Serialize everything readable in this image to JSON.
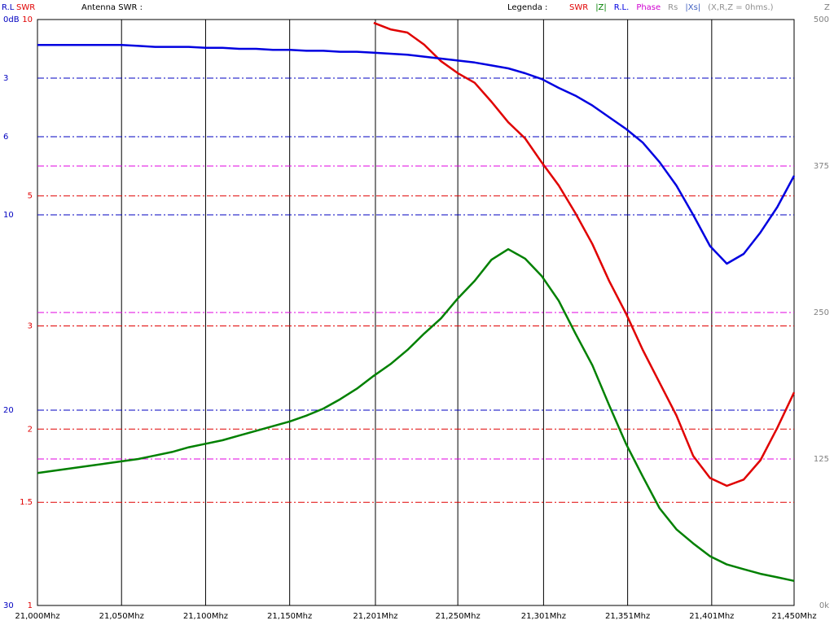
{
  "chart_data": {
    "type": "line",
    "title": "Antenna SWR :",
    "legend_title": "Legenda :",
    "legend_extra": [
      {
        "name": "Phase",
        "color": "#d000d0"
      },
      {
        "name": "Rs",
        "color": "#909090"
      },
      {
        "name": "|Xs|",
        "color": "#4060c0"
      }
    ],
    "note": "(X,R,Z = 0hms.)",
    "ylabel": "SWR",
    "y3label": "R.L",
    "y2label": "Z",
    "yscale": "log",
    "ylim": [
      1,
      10
    ],
    "yticks": [
      1,
      1.5,
      2,
      3,
      5,
      10
    ],
    "ycolor": "#e00000",
    "ygrid_color": "#e00000",
    "y2lim": [
      0,
      500
    ],
    "y2ticks": [
      {
        "value": 0,
        "label": "0k"
      },
      125,
      250,
      375,
      500
    ],
    "y2color": "#808080",
    "y2grid_color": "#e000e0",
    "y3lim": [
      30,
      0
    ],
    "y3ticks": [
      {
        "value": 0,
        "label": "0dB"
      },
      3,
      6,
      10,
      20,
      30
    ],
    "y3color": "#0000c0",
    "y3grid_color": "#0000c0",
    "xlim": [
      21000,
      21450
    ],
    "xticks": [
      {
        "value": 21000,
        "label": "21,000Mhz"
      },
      {
        "value": 21050,
        "label": "21,050Mhz"
      },
      {
        "value": 21100,
        "label": "21,100Mhz"
      },
      {
        "value": 21150,
        "label": "21,150Mhz"
      },
      {
        "value": 21201,
        "label": "21,201Mhz"
      },
      {
        "value": 21250,
        "label": "21,250Mhz"
      },
      {
        "value": 21301,
        "label": "21,301Mhz"
      },
      {
        "value": 21351,
        "label": "21,351Mhz"
      },
      {
        "value": 21401,
        "label": "21,401Mhz"
      },
      {
        "value": 21450,
        "label": "21,450Mhz"
      }
    ],
    "grid": true,
    "x": [
      21000,
      21010,
      21020,
      21030,
      21040,
      21050,
      21060,
      21070,
      21080,
      21090,
      21100,
      21110,
      21120,
      21130,
      21140,
      21150,
      21160,
      21170,
      21180,
      21190,
      21200,
      21210,
      21220,
      21230,
      21240,
      21250,
      21260,
      21270,
      21280,
      21290,
      21300,
      21310,
      21320,
      21330,
      21340,
      21350,
      21360,
      21370,
      21380,
      21390,
      21400,
      21410,
      21420,
      21430,
      21440,
      21450
    ],
    "series": [
      {
        "name": "SWR",
        "color": "#e00000",
        "axis": "y",
        "values": [
          null,
          null,
          null,
          null,
          null,
          null,
          null,
          null,
          null,
          null,
          null,
          null,
          null,
          null,
          null,
          null,
          null,
          null,
          null,
          null,
          9.87,
          9.62,
          9.5,
          9.06,
          8.49,
          8.1,
          7.8,
          7.24,
          6.68,
          6.27,
          5.7,
          5.21,
          4.67,
          4.14,
          3.58,
          3.15,
          2.73,
          2.4,
          2.11,
          1.8,
          1.65,
          1.6,
          1.64,
          1.77,
          2.01,
          2.31
        ]
      },
      {
        "name": "|Z|",
        "color": "#008000",
        "axis": "y2",
        "values": [
          113,
          115,
          117,
          119,
          121,
          123,
          125,
          128,
          131,
          135,
          138,
          141,
          145,
          149,
          153,
          157,
          162,
          168,
          176,
          185,
          196,
          206,
          218,
          232,
          245,
          262,
          277,
          295,
          304,
          296,
          281,
          260,
          232,
          205,
          171,
          138,
          110,
          83,
          65,
          53,
          42,
          35,
          31,
          27,
          24,
          21
        ]
      },
      {
        "name": "R.L.",
        "color": "#0000e0",
        "axis": "y3",
        "values": [
          1.3,
          1.3,
          1.3,
          1.3,
          1.3,
          1.3,
          1.35,
          1.4,
          1.4,
          1.4,
          1.45,
          1.45,
          1.5,
          1.5,
          1.55,
          1.55,
          1.6,
          1.6,
          1.65,
          1.65,
          1.7,
          1.75,
          1.8,
          1.9,
          2.0,
          2.1,
          2.2,
          2.35,
          2.5,
          2.75,
          3.05,
          3.5,
          3.9,
          4.4,
          5.0,
          5.6,
          6.3,
          7.3,
          8.5,
          10.0,
          11.6,
          12.5,
          12.0,
          10.9,
          9.6,
          8.0
        ]
      }
    ]
  }
}
